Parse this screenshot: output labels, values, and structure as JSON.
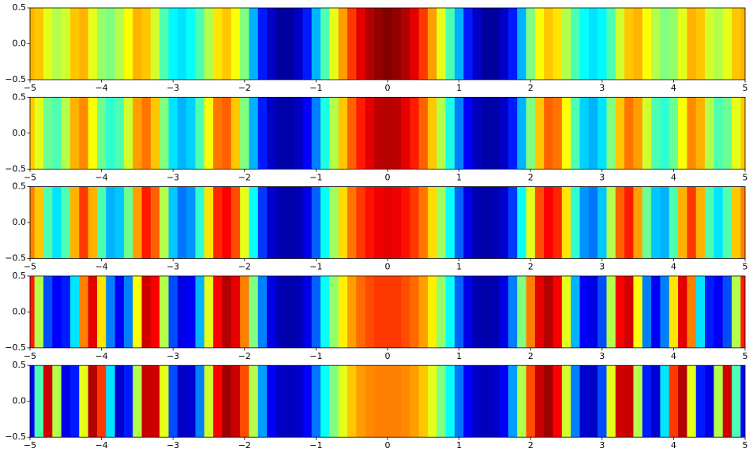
{
  "chart_data": [
    {
      "type": "heatmap",
      "colormap": "jet",
      "clim": [
        0,
        1
      ],
      "xlim": [
        -5,
        5
      ],
      "ylim": [
        -0.5,
        0.5
      ],
      "xticks": [
        {
          "value": -5,
          "label": "−5"
        },
        {
          "value": -4,
          "label": "−4"
        },
        {
          "value": -3,
          "label": "−3"
        },
        {
          "value": -2,
          "label": "−2"
        },
        {
          "value": -1,
          "label": "−1"
        },
        0,
        1,
        2,
        3,
        4,
        5
      ],
      "yticks": [
        {
          "value": -0.5,
          "label": "−0.5"
        },
        {
          "value": 0,
          "label": "0.0"
        },
        0.5
      ],
      "x": [
        -5,
        -4.875,
        -4.75,
        -4.625,
        -4.5,
        -4.375,
        -4.25,
        -4.125,
        -4,
        -3.875,
        -3.75,
        -3.625,
        -3.5,
        -3.375,
        -3.25,
        -3.125,
        -3,
        -2.875,
        -2.75,
        -2.625,
        -2.5,
        -2.375,
        -2.25,
        -2.125,
        -2,
        -1.875,
        -1.75,
        -1.625,
        -1.5,
        -1.375,
        -1.25,
        -1.125,
        -1,
        -0.875,
        -0.75,
        -0.625,
        -0.5,
        -0.375,
        -0.25,
        -0.125,
        0,
        0.125,
        0.25,
        0.375,
        0.5,
        0.625,
        0.75,
        0.875,
        1,
        1.125,
        1.25,
        1.375,
        1.5,
        1.625,
        1.75,
        1.875,
        2,
        2.125,
        2.25,
        2.375,
        2.5,
        2.625,
        2.75,
        2.875,
        3,
        3.125,
        3.25,
        3.375,
        3.5,
        3.625,
        3.75,
        3.875,
        4,
        4.125,
        4.25,
        4.375,
        4.5,
        4.625,
        4.75,
        4.875,
        5
      ],
      "values": [
        0.7,
        0.68,
        0.6,
        0.55,
        0.58,
        0.68,
        0.7,
        0.6,
        0.52,
        0.5,
        0.55,
        0.62,
        0.7,
        0.68,
        0.58,
        0.45,
        0.37,
        0.35,
        0.38,
        0.45,
        0.55,
        0.65,
        0.68,
        0.62,
        0.5,
        0.3,
        0.15,
        0.07,
        0.03,
        0.03,
        0.07,
        0.15,
        0.3,
        0.45,
        0.6,
        0.72,
        0.82,
        0.9,
        0.95,
        0.98,
        1.0,
        0.98,
        0.95,
        0.9,
        0.82,
        0.72,
        0.6,
        0.45,
        0.3,
        0.15,
        0.07,
        0.03,
        0.03,
        0.07,
        0.15,
        0.3,
        0.5,
        0.62,
        0.68,
        0.65,
        0.55,
        0.45,
        0.38,
        0.35,
        0.37,
        0.45,
        0.58,
        0.68,
        0.7,
        0.62,
        0.55,
        0.5,
        0.52,
        0.6,
        0.7,
        0.68,
        0.58,
        0.55,
        0.6,
        0.68,
        0.7
      ]
    },
    {
      "type": "heatmap",
      "colormap": "jet",
      "clim": [
        0,
        1
      ],
      "xlim": [
        -5,
        5
      ],
      "ylim": [
        -0.5,
        0.5
      ],
      "xticks": [
        {
          "value": -5,
          "label": "−5"
        },
        {
          "value": -4,
          "label": "−4"
        },
        {
          "value": -3,
          "label": "−3"
        },
        {
          "value": -2,
          "label": "−2"
        },
        {
          "value": -1,
          "label": "−1"
        },
        0,
        1,
        2,
        3,
        4,
        5
      ],
      "yticks": [
        {
          "value": -0.5,
          "label": "−0.5"
        },
        {
          "value": 0,
          "label": "0.0"
        },
        0.5
      ],
      "x": [
        -5,
        -4.875,
        -4.75,
        -4.625,
        -4.5,
        -4.375,
        -4.25,
        -4.125,
        -4,
        -3.875,
        -3.75,
        -3.625,
        -3.5,
        -3.375,
        -3.25,
        -3.125,
        -3,
        -2.875,
        -2.75,
        -2.625,
        -2.5,
        -2.375,
        -2.25,
        -2.125,
        -2,
        -1.875,
        -1.75,
        -1.625,
        -1.5,
        -1.375,
        -1.25,
        -1.125,
        -1,
        -0.875,
        -0.75,
        -0.625,
        -0.5,
        -0.375,
        -0.25,
        -0.125,
        0,
        0.125,
        0.25,
        0.375,
        0.5,
        0.625,
        0.75,
        0.875,
        1,
        1.125,
        1.25,
        1.375,
        1.5,
        1.625,
        1.75,
        1.875,
        2,
        2.125,
        2.25,
        2.375,
        2.5,
        2.625,
        2.75,
        2.875,
        3,
        3.125,
        3.25,
        3.375,
        3.5,
        3.625,
        3.75,
        3.875,
        4,
        4.125,
        4.25,
        4.375,
        4.5,
        4.625,
        4.75,
        4.875,
        5
      ],
      "values": [
        0.68,
        0.6,
        0.48,
        0.45,
        0.55,
        0.7,
        0.74,
        0.62,
        0.48,
        0.42,
        0.45,
        0.58,
        0.72,
        0.76,
        0.68,
        0.5,
        0.35,
        0.3,
        0.33,
        0.45,
        0.62,
        0.76,
        0.78,
        0.68,
        0.5,
        0.3,
        0.15,
        0.07,
        0.04,
        0.04,
        0.06,
        0.12,
        0.25,
        0.4,
        0.55,
        0.68,
        0.78,
        0.85,
        0.9,
        0.94,
        0.95,
        0.94,
        0.9,
        0.85,
        0.78,
        0.68,
        0.55,
        0.4,
        0.25,
        0.12,
        0.06,
        0.04,
        0.04,
        0.07,
        0.15,
        0.3,
        0.5,
        0.68,
        0.78,
        0.76,
        0.62,
        0.45,
        0.33,
        0.3,
        0.35,
        0.5,
        0.68,
        0.76,
        0.72,
        0.58,
        0.45,
        0.42,
        0.48,
        0.62,
        0.74,
        0.7,
        0.55,
        0.45,
        0.48,
        0.6,
        0.68
      ]
    },
    {
      "type": "heatmap",
      "colormap": "jet",
      "clim": [
        0,
        1
      ],
      "xlim": [
        -5,
        5
      ],
      "ylim": [
        -0.5,
        0.5
      ],
      "xticks": [
        {
          "value": -5,
          "label": "−5"
        },
        {
          "value": -4,
          "label": "−4"
        },
        {
          "value": -3,
          "label": "−3"
        },
        {
          "value": -2,
          "label": "−2"
        },
        {
          "value": -1,
          "label": "−1"
        },
        0,
        1,
        2,
        3,
        4,
        5
      ],
      "yticks": [
        {
          "value": -0.5,
          "label": "−0.5"
        },
        {
          "value": 0,
          "label": "0.0"
        },
        0.5
      ],
      "x": [
        -5,
        -4.875,
        -4.75,
        -4.625,
        -4.5,
        -4.375,
        -4.25,
        -4.125,
        -4,
        -3.875,
        -3.75,
        -3.625,
        -3.5,
        -3.375,
        -3.25,
        -3.125,
        -3,
        -2.875,
        -2.75,
        -2.625,
        -2.5,
        -2.375,
        -2.25,
        -2.125,
        -2,
        -1.875,
        -1.75,
        -1.625,
        -1.5,
        -1.375,
        -1.25,
        -1.125,
        -1,
        -0.875,
        -0.75,
        -0.625,
        -0.5,
        -0.375,
        -0.25,
        -0.125,
        0,
        0.125,
        0.25,
        0.375,
        0.5,
        0.625,
        0.75,
        0.875,
        1,
        1.125,
        1.25,
        1.375,
        1.5,
        1.625,
        1.75,
        1.875,
        2,
        2.125,
        2.25,
        2.375,
        2.5,
        2.625,
        2.75,
        2.875,
        3,
        3.125,
        3.25,
        3.375,
        3.5,
        3.625,
        3.75,
        3.875,
        4,
        4.125,
        4.25,
        4.375,
        4.5,
        4.625,
        4.75,
        4.875,
        5
      ],
      "values": [
        0.75,
        0.68,
        0.45,
        0.35,
        0.45,
        0.7,
        0.82,
        0.7,
        0.45,
        0.3,
        0.32,
        0.48,
        0.72,
        0.85,
        0.78,
        0.55,
        0.32,
        0.24,
        0.27,
        0.42,
        0.65,
        0.84,
        0.88,
        0.8,
        0.6,
        0.38,
        0.18,
        0.08,
        0.05,
        0.04,
        0.05,
        0.1,
        0.22,
        0.38,
        0.53,
        0.66,
        0.76,
        0.82,
        0.86,
        0.89,
        0.9,
        0.89,
        0.86,
        0.82,
        0.76,
        0.66,
        0.53,
        0.38,
        0.22,
        0.1,
        0.05,
        0.04,
        0.05,
        0.08,
        0.18,
        0.38,
        0.6,
        0.8,
        0.88,
        0.84,
        0.65,
        0.42,
        0.27,
        0.24,
        0.32,
        0.55,
        0.78,
        0.85,
        0.72,
        0.48,
        0.32,
        0.3,
        0.45,
        0.7,
        0.82,
        0.7,
        0.45,
        0.35,
        0.45,
        0.68,
        0.75
      ]
    },
    {
      "type": "heatmap",
      "colormap": "jet",
      "clim": [
        0,
        1
      ],
      "xlim": [
        -5,
        5
      ],
      "ylim": [
        -0.5,
        0.5
      ],
      "xticks": [
        {
          "value": -5,
          "label": "−5"
        },
        {
          "value": -4,
          "label": "−4"
        },
        {
          "value": -3,
          "label": "−3"
        },
        {
          "value": -2,
          "label": "−2"
        },
        {
          "value": -1,
          "label": "−1"
        },
        0,
        1,
        2,
        3,
        4,
        5
      ],
      "yticks": [
        {
          "value": -0.5,
          "label": "−0.5"
        },
        {
          "value": 0,
          "label": "0.0"
        },
        0.5
      ],
      "x": [
        -5,
        -4.875,
        -4.75,
        -4.625,
        -4.5,
        -4.375,
        -4.25,
        -4.125,
        -4,
        -3.875,
        -3.75,
        -3.625,
        -3.5,
        -3.375,
        -3.25,
        -3.125,
        -3,
        -2.875,
        -2.75,
        -2.625,
        -2.5,
        -2.375,
        -2.25,
        -2.125,
        -2,
        -1.875,
        -1.75,
        -1.625,
        -1.5,
        -1.375,
        -1.25,
        -1.125,
        -1,
        -0.875,
        -0.75,
        -0.625,
        -0.5,
        -0.375,
        -0.25,
        -0.125,
        0,
        0.125,
        0.25,
        0.375,
        0.5,
        0.625,
        0.75,
        0.875,
        1,
        1.125,
        1.25,
        1.375,
        1.5,
        1.625,
        1.75,
        1.875,
        2,
        2.125,
        2.25,
        2.375,
        2.5,
        2.625,
        2.75,
        2.875,
        3,
        3.125,
        3.25,
        3.375,
        3.5,
        3.625,
        3.75,
        3.875,
        4,
        4.125,
        4.25,
        4.375,
        4.5,
        4.625,
        4.75,
        4.875,
        5
      ],
      "values": [
        0.85,
        0.55,
        0.2,
        0.12,
        0.15,
        0.35,
        0.75,
        0.9,
        0.65,
        0.25,
        0.12,
        0.25,
        0.62,
        0.92,
        0.88,
        0.55,
        0.2,
        0.1,
        0.12,
        0.3,
        0.6,
        0.88,
        0.95,
        0.9,
        0.75,
        0.5,
        0.25,
        0.1,
        0.05,
        0.04,
        0.05,
        0.1,
        0.22,
        0.38,
        0.52,
        0.64,
        0.72,
        0.77,
        0.8,
        0.82,
        0.82,
        0.82,
        0.8,
        0.77,
        0.72,
        0.64,
        0.52,
        0.38,
        0.22,
        0.1,
        0.05,
        0.04,
        0.05,
        0.1,
        0.25,
        0.5,
        0.75,
        0.9,
        0.95,
        0.88,
        0.6,
        0.3,
        0.12,
        0.1,
        0.2,
        0.55,
        0.88,
        0.92,
        0.62,
        0.25,
        0.12,
        0.25,
        0.65,
        0.9,
        0.75,
        0.35,
        0.15,
        0.12,
        0.2,
        0.55,
        0.85
      ]
    },
    {
      "type": "heatmap",
      "colormap": "jet",
      "clim": [
        0,
        1
      ],
      "xlim": [
        -5,
        5
      ],
      "ylim": [
        -0.5,
        0.5
      ],
      "xticks": [
        {
          "value": -5,
          "label": "−5"
        },
        {
          "value": -4,
          "label": "−4"
        },
        {
          "value": -3,
          "label": "−3"
        },
        {
          "value": -2,
          "label": "−2"
        },
        {
          "value": -1,
          "label": "−1"
        },
        0,
        1,
        2,
        3,
        4,
        5
      ],
      "yticks": [
        {
          "value": -0.5,
          "label": "−0.5"
        },
        {
          "value": 0,
          "label": "0.0"
        },
        0.5
      ],
      "x": [
        -5,
        -4.875,
        -4.75,
        -4.625,
        -4.5,
        -4.375,
        -4.25,
        -4.125,
        -4,
        -3.875,
        -3.75,
        -3.625,
        -3.5,
        -3.375,
        -3.25,
        -3.125,
        -3,
        -2.875,
        -2.75,
        -2.625,
        -2.5,
        -2.375,
        -2.25,
        -2.125,
        -2,
        -1.875,
        -1.75,
        -1.625,
        -1.5,
        -1.375,
        -1.25,
        -1.125,
        -1,
        -0.875,
        -0.75,
        -0.625,
        -0.5,
        -0.375,
        -0.25,
        -0.125,
        0,
        0.125,
        0.25,
        0.375,
        0.5,
        0.625,
        0.75,
        0.875,
        1,
        1.125,
        1.25,
        1.375,
        1.5,
        1.625,
        1.75,
        1.875,
        2,
        2.125,
        2.25,
        2.375,
        2.5,
        2.625,
        2.75,
        2.875,
        3,
        3.125,
        3.25,
        3.375,
        3.5,
        3.625,
        3.75,
        3.875,
        4,
        4.125,
        4.25,
        4.375,
        4.5,
        4.625,
        4.75,
        4.875,
        5
      ],
      "values": [
        0.12,
        0.45,
        0.92,
        0.55,
        0.1,
        0.15,
        0.6,
        0.95,
        0.82,
        0.35,
        0.08,
        0.15,
        0.55,
        0.93,
        0.92,
        0.6,
        0.2,
        0.07,
        0.08,
        0.25,
        0.58,
        0.88,
        0.97,
        0.93,
        0.8,
        0.55,
        0.28,
        0.12,
        0.07,
        0.06,
        0.07,
        0.12,
        0.24,
        0.38,
        0.5,
        0.6,
        0.68,
        0.72,
        0.74,
        0.75,
        0.75,
        0.75,
        0.74,
        0.72,
        0.68,
        0.6,
        0.5,
        0.38,
        0.24,
        0.12,
        0.07,
        0.06,
        0.07,
        0.12,
        0.28,
        0.55,
        0.8,
        0.93,
        0.97,
        0.88,
        0.58,
        0.25,
        0.08,
        0.07,
        0.2,
        0.6,
        0.92,
        0.93,
        0.55,
        0.15,
        0.08,
        0.35,
        0.82,
        0.95,
        0.6,
        0.15,
        0.1,
        0.55,
        0.92,
        0.45,
        0.12
      ]
    }
  ]
}
